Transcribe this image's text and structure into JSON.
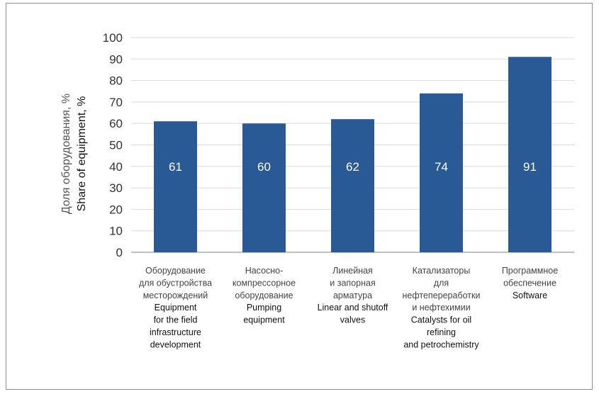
{
  "chart_data": {
    "type": "bar",
    "ylabel_ru": "Доля оборудования, %",
    "ylabel_en": "Share of equipment, %",
    "ylim": [
      0,
      100
    ],
    "yticks": [
      0,
      10,
      20,
      30,
      40,
      50,
      60,
      70,
      80,
      90,
      100
    ],
    "grid": true,
    "bar_color": "#2a5a96",
    "values": [
      61,
      60,
      62,
      74,
      91
    ],
    "data_labels": [
      "61",
      "60",
      "62",
      "74",
      "91"
    ],
    "categories": [
      {
        "ru": [
          "Оборудование",
          "для обустройства",
          "месторождений"
        ],
        "en": [
          "Equipment",
          "for the field",
          "infrastructure",
          "development"
        ]
      },
      {
        "ru": [
          "Насосно-",
          "компрессорное",
          "оборудование"
        ],
        "en": [
          "Pumping",
          "equipment"
        ]
      },
      {
        "ru": [
          "Линейная",
          "и запорная",
          "арматура"
        ],
        "en": [
          "Linear and shutoff",
          "valves"
        ]
      },
      {
        "ru": [
          "Катализаторы",
          "для",
          "нефтепереработки",
          "и нефтехимии"
        ],
        "en": [
          "Catalysts for oil",
          "refining",
          "and petrochemistry"
        ]
      },
      {
        "ru": [
          "Программное",
          "обеспечение"
        ],
        "en": [
          "Software"
        ]
      }
    ]
  }
}
